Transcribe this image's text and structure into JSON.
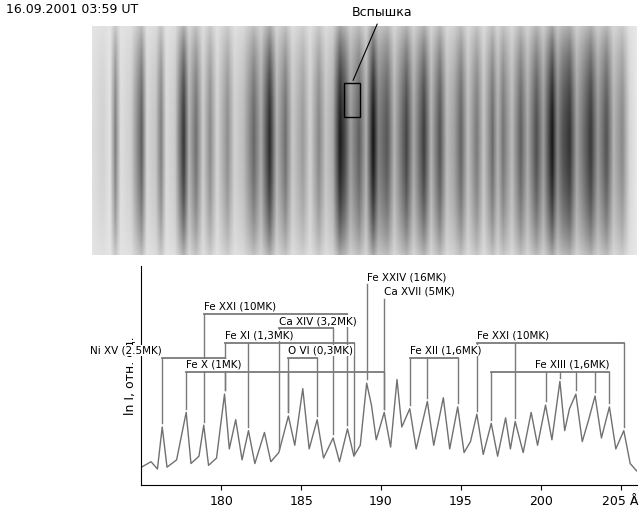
{
  "header": "16.09.2001 03:59 UT",
  "image_annotation": {
    "text": "Вспышка",
    "x": 189.8
  },
  "chart_data": {
    "type": "line",
    "x": [
      175.0,
      175.6,
      176.0,
      176.3,
      176.6,
      177.2,
      177.8,
      178.1,
      178.6,
      178.9,
      179.2,
      179.7,
      180.2,
      180.5,
      180.9,
      181.3,
      181.7,
      182.1,
      182.7,
      183.1,
      183.6,
      184.2,
      184.6,
      185.1,
      185.5,
      186.0,
      186.4,
      187.0,
      187.4,
      187.9,
      188.3,
      188.7,
      189.1,
      189.4,
      189.7,
      190.2,
      190.6,
      191.0,
      191.3,
      191.8,
      192.2,
      192.9,
      193.3,
      193.9,
      194.3,
      194.8,
      195.2,
      195.6,
      196.0,
      196.4,
      196.9,
      197.3,
      197.8,
      198.1,
      198.4,
      198.9,
      199.4,
      199.8,
      200.3,
      200.7,
      201.2,
      201.5,
      201.8,
      202.2,
      202.6,
      203.0,
      203.4,
      203.8,
      204.3,
      204.7,
      205.2,
      205.6,
      206.0
    ],
    "values": [
      1.0,
      1.3,
      0.9,
      3.2,
      1.0,
      1.4,
      4.0,
      1.2,
      1.6,
      3.3,
      1.1,
      1.5,
      5.0,
      2.0,
      3.6,
      1.4,
      3.0,
      1.2,
      2.9,
      1.3,
      1.8,
      3.8,
      2.2,
      5.3,
      2.0,
      3.6,
      1.5,
      2.6,
      1.3,
      3.1,
      1.6,
      2.2,
      5.6,
      4.4,
      2.5,
      4.0,
      2.1,
      5.8,
      3.2,
      4.2,
      2.0,
      4.6,
      2.2,
      4.8,
      2.0,
      4.3,
      1.8,
      2.4,
      3.9,
      1.7,
      3.4,
      1.6,
      3.7,
      2.0,
      3.5,
      1.8,
      4.0,
      2.2,
      4.4,
      2.5,
      5.7,
      3.0,
      4.2,
      5.0,
      2.4,
      3.6,
      4.9,
      2.6,
      4.3,
      2.0,
      3.0,
      1.2,
      0.8
    ],
    "color": "#707070",
    "xlim": [
      175,
      206
    ],
    "ylim": [
      0,
      12
    ],
    "xticks": [
      180,
      185,
      190,
      195,
      200,
      {
        "value": 205,
        "label": "205 Å"
      }
    ],
    "y_label": "ln I, отн. ед.",
    "tick_labels": "x",
    "annotations": [
      {
        "text": "Ni XV (2.5MK)",
        "lines": [
          176.3,
          180.2
        ]
      },
      {
        "text": "Fe XXI (10MK)",
        "lines": [
          178.9,
          187.9
        ]
      },
      {
        "text": "Ca XIV (3,2MK)",
        "lines": [
          183.6,
          187.0
        ]
      },
      {
        "text": "Fe XI (1,3MK)",
        "lines": [
          180.2,
          181.7,
          188.3
        ]
      },
      {
        "text": "Fe X (1MK)",
        "lines": [
          177.8,
          184.2,
          190.2
        ]
      },
      {
        "text": "O VI (0,3MK)",
        "lines": [
          184.2,
          186.0
        ]
      },
      {
        "text": "Fe XXIV (16MK)",
        "lines": [
          189.1
        ]
      },
      {
        "text": "Ca XVII (5MK)",
        "lines": [
          190.2
        ]
      },
      {
        "text": "Fe XXI (10MK)",
        "lines": [
          196.0,
          198.4,
          205.2
        ]
      },
      {
        "text": "Fe XII (1,6MK)",
        "lines": [
          191.8,
          192.9,
          194.8
        ]
      },
      {
        "text": "Fe XIII (1,6MK)",
        "lines": [
          196.9,
          200.3,
          201.2,
          202.2,
          203.4,
          204.3
        ]
      }
    ]
  }
}
